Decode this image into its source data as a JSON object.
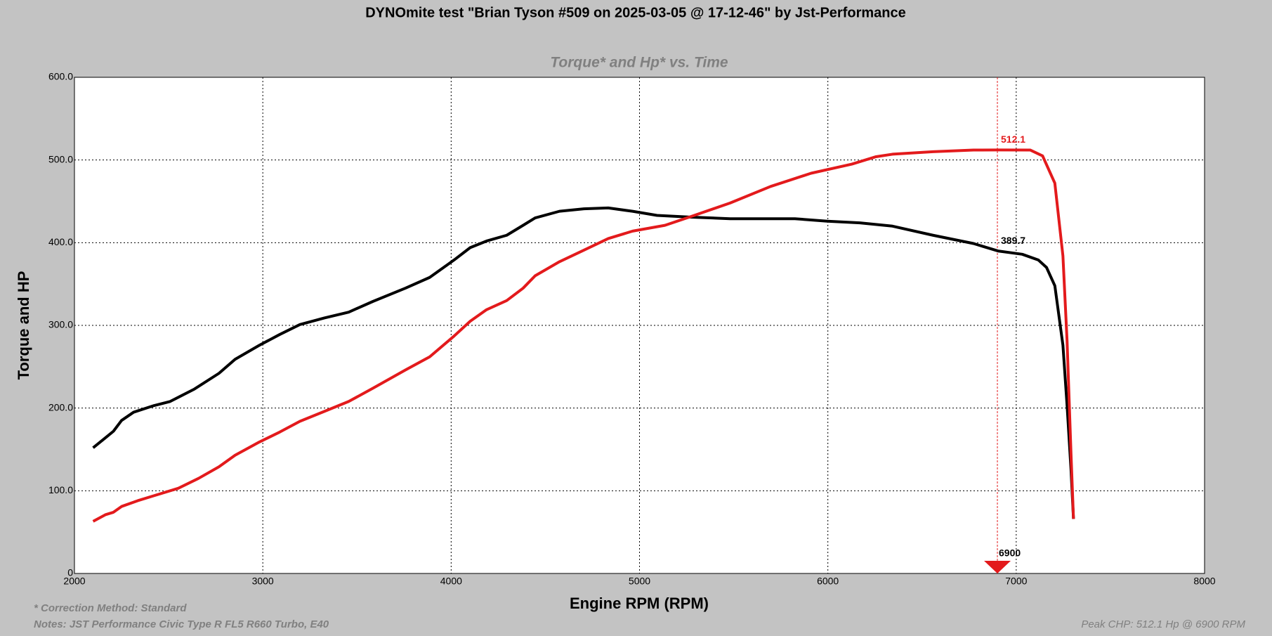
{
  "chart_data": {
    "type": "line",
    "title": "DYNOmite test \"Brian Tyson #509 on 2025-03-05 @ 17-12-46\" by Jst-Performance",
    "subtitle": "Torque* and Hp* vs. Time",
    "xlabel": "Engine RPM (RPM)",
    "ylabel": "Torque and HP",
    "xlim": [
      2000,
      8000
    ],
    "xticks": [
      2000,
      3000,
      4000,
      5000,
      6000,
      7000,
      8000
    ],
    "ylim": [
      0,
      600
    ],
    "yticks": [
      {
        "value": 0,
        "label": "0"
      },
      {
        "value": 100,
        "label": "100.0"
      },
      {
        "value": 200,
        "label": "200.0"
      },
      {
        "value": 300,
        "label": "300.0"
      },
      {
        "value": 400,
        "label": "400.0"
      },
      {
        "value": 500,
        "label": "500.0"
      },
      {
        "value": 600,
        "label": "600.0"
      }
    ],
    "grid": true,
    "series": [
      {
        "color": "#000000",
        "x": [
          2099,
          2164,
          2207,
          2250,
          2314,
          2422,
          2508,
          2637,
          2767,
          2853,
          2982,
          3090,
          3197,
          3327,
          3456,
          3585,
          3757,
          3886,
          4015,
          4101,
          4188,
          4295,
          4382,
          4446,
          4575,
          4705,
          4834,
          4963,
          5093,
          5265,
          5481,
          5696,
          5825,
          5997,
          6170,
          6343,
          6558,
          6773,
          6903,
          7032,
          7118,
          7161,
          7205,
          7248,
          7270,
          7291,
          7304
        ],
        "values": [
          152,
          164,
          172,
          185,
          195,
          203,
          208,
          223,
          242,
          259,
          276,
          289,
          301,
          309,
          316,
          329,
          345,
          358,
          379,
          394,
          402,
          409,
          421,
          430,
          438,
          441,
          442,
          438,
          433,
          431,
          429,
          429,
          429,
          426,
          424,
          420,
          409,
          399,
          390,
          386,
          379,
          370,
          348,
          276,
          203,
          125,
          66
        ]
      },
      {
        "color": "#e31a1c",
        "x": [
          2099,
          2164,
          2207,
          2250,
          2336,
          2422,
          2551,
          2659,
          2767,
          2853,
          2982,
          3090,
          3197,
          3327,
          3456,
          3585,
          3757,
          3886,
          4015,
          4101,
          4188,
          4295,
          4382,
          4446,
          4575,
          4705,
          4834,
          4963,
          5135,
          5265,
          5481,
          5696,
          5911,
          6127,
          6256,
          6343,
          6558,
          6773,
          6903,
          7075,
          7140,
          7205,
          7248,
          7270,
          7291,
          7304
        ],
        "values": [
          63,
          71,
          74,
          81,
          88,
          94,
          103,
          115,
          129,
          143,
          159,
          171,
          184,
          196,
          208,
          224,
          246,
          262,
          287,
          305,
          319,
          330,
          345,
          360,
          377,
          391,
          405,
          414,
          421,
          431,
          448,
          468,
          484,
          495,
          504,
          507,
          510,
          512,
          512.1,
          512,
          505,
          472,
          384,
          281,
          144,
          66
        ]
      }
    ],
    "annotations": [
      {
        "x": 6900,
        "y": 512.1,
        "label": "512.1",
        "color": "#e31a1c"
      },
      {
        "x": 6900,
        "y": 389.7,
        "label": "389.7",
        "color": "#000000"
      }
    ],
    "cursor": {
      "value": 6900,
      "label": "6900",
      "color": "#e31a1c"
    },
    "notes": [
      "* Correction Method: Standard",
      "Notes: JST Performance Civic Type R FL5 R660 Turbo, E40"
    ],
    "peak_note": "Peak CHP: 512.1 Hp @ 6900 RPM"
  }
}
